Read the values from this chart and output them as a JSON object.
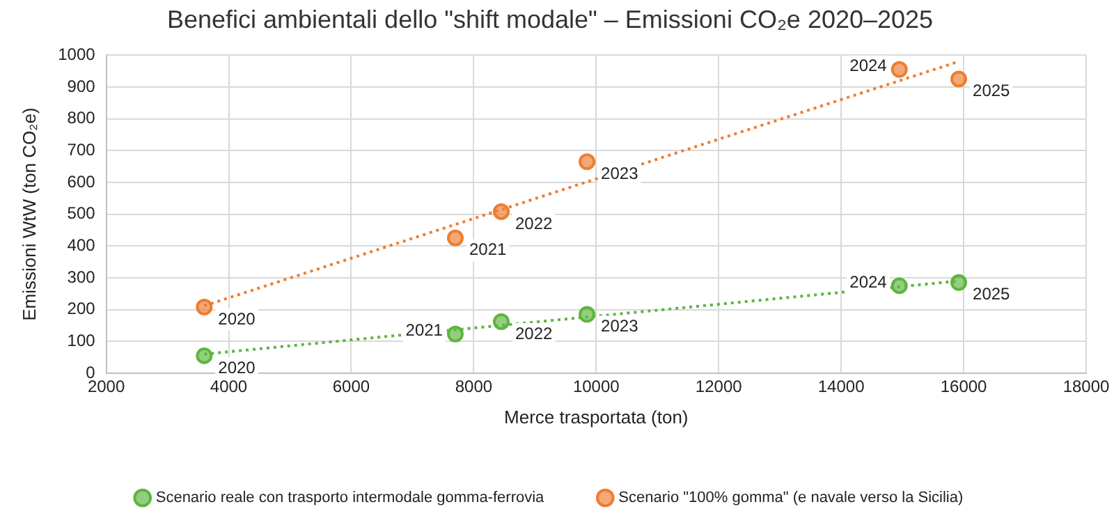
{
  "chart_data": {
    "type": "scatter",
    "title": "Benefici ambientali dello \"shift modale\" – Emissioni CO₂e 2020–2025",
    "xlabel": "Merce trasportata (ton)",
    "ylabel": "Emissioni WtW (ton CO₂e)",
    "xlim": [
      2000,
      18000
    ],
    "xticks": [
      2000,
      4000,
      6000,
      8000,
      10000,
      12000,
      14000,
      16000,
      18000
    ],
    "ylim": [
      0,
      1000
    ],
    "yticks": [
      0,
      100,
      200,
      300,
      400,
      500,
      600,
      700,
      800,
      900,
      1000
    ],
    "grid": true,
    "legend": "bottom",
    "marker": "circle",
    "series": [
      {
        "name": "Scenario reale con trasporto intermodale gomma-ferrovia",
        "color": "#5db540",
        "x": [
          3600,
          7700,
          8450,
          9850,
          14950,
          15920
        ],
        "values": [
          55,
          123,
          162,
          185,
          275,
          285
        ]
      },
      {
        "name": "Scenario \"100% gomma\" (e navale verso la Sicilia)",
        "color": "#ed7d31",
        "x": [
          3600,
          7700,
          8450,
          9850,
          14950,
          15920
        ],
        "values": [
          208,
          425,
          508,
          665,
          955,
          925
        ]
      },
      {
        "type": "line",
        "color": "#5db540",
        "line_style": "dotted",
        "marker": "none",
        "x": [
          3600,
          15920
        ],
        "values": [
          60,
          290
        ]
      },
      {
        "type": "line",
        "color": "#ed7d31",
        "line_style": "dotted",
        "marker": "none",
        "x": [
          3600,
          15920
        ],
        "values": [
          212,
          980
        ]
      }
    ],
    "annotations": [
      {
        "text": "2020",
        "x": 3600,
        "y": 55
      },
      {
        "text": "2021",
        "x": 7700,
        "y": 123
      },
      {
        "text": "2022",
        "x": 8450,
        "y": 162
      },
      {
        "text": "2023",
        "x": 9850,
        "y": 185
      },
      {
        "text": "2024",
        "x": 14950,
        "y": 275
      },
      {
        "text": "2025",
        "x": 15920,
        "y": 285
      },
      {
        "text": "2020",
        "x": 3600,
        "y": 208
      },
      {
        "text": "2021",
        "x": 7700,
        "y": 425
      },
      {
        "text": "2022",
        "x": 8450,
        "y": 508
      },
      {
        "text": "2023",
        "x": 9850,
        "y": 665
      },
      {
        "text": "2024",
        "x": 14950,
        "y": 955
      },
      {
        "text": "2025",
        "x": 15920,
        "y": 925
      }
    ]
  }
}
